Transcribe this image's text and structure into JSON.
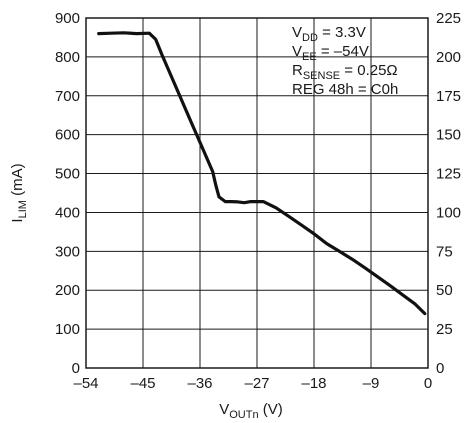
{
  "chart_data": {
    "type": "line",
    "title": "",
    "x_axis": {
      "label_main": "V",
      "label_sub": "OUTn",
      "label_unit": " (V)",
      "range": [
        -54,
        0
      ],
      "ticks": [
        -54,
        -45,
        -36,
        -27,
        -18,
        -9,
        0
      ],
      "tick_labels": [
        "–54",
        "–45",
        "–36",
        "–27",
        "–18",
        "–9",
        "0"
      ]
    },
    "y_axis_left": {
      "label_main": "I",
      "label_sub": "LIM",
      "label_unit": " (mA)",
      "range": [
        0,
        900
      ],
      "ticks": [
        0,
        100,
        200,
        300,
        400,
        500,
        600,
        700,
        800,
        900
      ],
      "tick_labels": [
        "0",
        "100",
        "200",
        "300",
        "400",
        "500",
        "600",
        "700",
        "800",
        "900"
      ]
    },
    "y_axis_right": {
      "range": [
        0,
        225
      ],
      "ticks": [
        0,
        25,
        50,
        75,
        100,
        125,
        150,
        175,
        200,
        225
      ],
      "tick_labels": [
        "0",
        "25",
        "50",
        "75",
        "100",
        "125",
        "150",
        "175",
        "200",
        "225"
      ]
    },
    "grid": true,
    "annotations": [
      {
        "main": "V",
        "sub": "DD",
        "rest": " = 3.3V"
      },
      {
        "main": "V",
        "sub": "EE",
        "rest": " = –54V"
      },
      {
        "main": "R",
        "sub": "SENSE",
        "rest": " = 0.25Ω"
      },
      {
        "main": "REG 48h = C0h",
        "sub": "",
        "rest": ""
      }
    ],
    "series": [
      {
        "x": [
          -52,
          -50,
          -48,
          -46,
          -44,
          -43,
          -42,
          -40,
          -38,
          -36,
          -34,
          -33.5,
          -33,
          -32,
          -31,
          -30,
          -29,
          -28,
          -27,
          -26,
          -24,
          -22,
          -20,
          -18,
          -16,
          -14,
          -12,
          -10,
          -8,
          -6,
          -4,
          -2,
          -0.5
        ],
        "y": [
          860,
          861,
          862,
          860,
          861,
          845,
          805,
          730,
          655,
          580,
          505,
          470,
          440,
          428,
          428,
          427,
          425,
          428,
          428,
          428,
          412,
          390,
          368,
          345,
          320,
          300,
          280,
          258,
          235,
          212,
          188,
          164,
          140
        ]
      }
    ]
  }
}
